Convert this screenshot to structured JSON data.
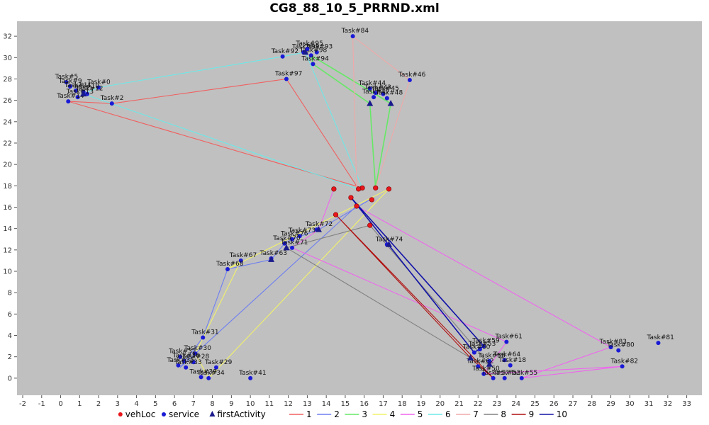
{
  "chart_data": {
    "type": "scatter",
    "title": "CG8_88_10_5_PRRND.xml",
    "xlim": [
      -2.3,
      33.8
    ],
    "ylim": [
      -1.6,
      33.4
    ],
    "xticks": [
      -2,
      -1,
      0,
      1,
      2,
      3,
      4,
      5,
      6,
      7,
      8,
      9,
      10,
      11,
      12,
      13,
      14,
      15,
      16,
      17,
      18,
      19,
      20,
      21,
      22,
      23,
      24,
      25,
      26,
      27,
      28,
      29,
      30,
      31,
      32,
      33
    ],
    "yticks": [
      0,
      2,
      4,
      6,
      8,
      10,
      12,
      14,
      16,
      18,
      20,
      22,
      24,
      26,
      28,
      30,
      32
    ],
    "colors": {
      "plot_bg": "#c0c0c0",
      "vehLoc": "#e8161b",
      "service": "#1a1ad6",
      "firstActivity": "#1a1a8c",
      "route1": "#f06060",
      "route2": "#6e7ef0",
      "route3": "#66e866",
      "route4": "#f2f26a",
      "route5": "#ee66ee",
      "route6": "#6ee8e8",
      "route7": "#f0a8a8",
      "route8": "#808080",
      "route9": "#b01010",
      "route10": "#1212a8"
    },
    "legend": [
      {
        "label": "vehLoc",
        "kind": "circle",
        "color": "#e8161b"
      },
      {
        "label": "service",
        "kind": "circle",
        "color": "#1a1ad6"
      },
      {
        "label": "firstActivity",
        "kind": "triangle",
        "color": "#1a1a8c"
      },
      {
        "label": "1",
        "kind": "line",
        "color": "#f06060"
      },
      {
        "label": "2",
        "kind": "line",
        "color": "#6e7ef0"
      },
      {
        "label": "3",
        "kind": "line",
        "color": "#66e866"
      },
      {
        "label": "4",
        "kind": "line",
        "color": "#f2f26a"
      },
      {
        "label": "5",
        "kind": "line",
        "color": "#ee66ee"
      },
      {
        "label": "6",
        "kind": "line",
        "color": "#6ee8e8"
      },
      {
        "label": "7",
        "kind": "line",
        "color": "#f0a8a8"
      },
      {
        "label": "8",
        "kind": "line",
        "color": "#808080"
      },
      {
        "label": "9",
        "kind": "line",
        "color": "#b01010"
      },
      {
        "label": "10",
        "kind": "line",
        "color": "#1212a8"
      }
    ],
    "vehLoc": [
      [
        14.4,
        17.7
      ],
      [
        15.9,
        17.8
      ],
      [
        15.7,
        17.7
      ],
      [
        16.6,
        17.8
      ],
      [
        17.3,
        17.7
      ],
      [
        15.3,
        16.9
      ],
      [
        16.4,
        16.7
      ],
      [
        15.6,
        16.1
      ],
      [
        14.5,
        15.3
      ],
      [
        16.3,
        14.3
      ]
    ],
    "services": [
      {
        "label": "Task#0",
        "x": 2.0,
        "y": 27.2
      },
      {
        "label": "Task#2",
        "x": 2.7,
        "y": 25.7
      },
      {
        "label": "Task#5",
        "x": 0.3,
        "y": 27.7
      },
      {
        "label": "Task#9",
        "x": 0.5,
        "y": 27.3
      },
      {
        "label": "Task#10",
        "x": 1.2,
        "y": 26.8
      },
      {
        "label": "Task#11",
        "x": 0.8,
        "y": 26.9
      },
      {
        "label": "Task#12",
        "x": 1.4,
        "y": 26.6
      },
      {
        "label": "Task#13",
        "x": 0.9,
        "y": 26.3
      },
      {
        "label": "Task#14",
        "x": 0.4,
        "y": 25.9
      },
      {
        "label": "Task#84",
        "x": 15.4,
        "y": 32.0
      },
      {
        "label": "Task#99",
        "x": 12.8,
        "y": 30.5
      },
      {
        "label": "Task#92",
        "x": 11.7,
        "y": 30.1
      },
      {
        "label": "Task#93",
        "x": 13.5,
        "y": 30.5
      },
      {
        "label": "Task#98",
        "x": 13.2,
        "y": 30.2
      },
      {
        "label": "Task#95",
        "x": 13.0,
        "y": 30.8
      },
      {
        "label": "Task#94",
        "x": 13.3,
        "y": 29.4
      },
      {
        "label": "Task#97",
        "x": 11.9,
        "y": 28.0
      },
      {
        "label": "Task#46",
        "x": 18.4,
        "y": 27.9
      },
      {
        "label": "Task#44",
        "x": 16.3,
        "y": 27.1
      },
      {
        "label": "Task#43",
        "x": 16.6,
        "y": 26.7
      },
      {
        "label": "Task#45",
        "x": 17.0,
        "y": 26.6
      },
      {
        "label": "Task#47",
        "x": 16.5,
        "y": 26.3
      },
      {
        "label": "Task#48",
        "x": 17.2,
        "y": 26.2
      },
      {
        "label": "Task#72",
        "x": 13.5,
        "y": 13.9
      },
      {
        "label": "Task#73",
        "x": 12.6,
        "y": 13.3
      },
      {
        "label": "Task#76",
        "x": 12.2,
        "y": 13.0
      },
      {
        "label": "Task#70",
        "x": 11.8,
        "y": 12.6
      },
      {
        "label": "Task#71",
        "x": 12.2,
        "y": 12.2
      },
      {
        "label": "Task#74",
        "x": 17.2,
        "y": 12.5
      },
      {
        "label": "Task#67",
        "x": 9.5,
        "y": 11.0
      },
      {
        "label": "Task#68",
        "x": 8.8,
        "y": 10.2
      },
      {
        "label": "Task#63",
        "x": 11.1,
        "y": 11.2
      },
      {
        "label": "Task#31",
        "x": 7.5,
        "y": 3.8
      },
      {
        "label": "Task#30",
        "x": 7.1,
        "y": 2.3
      },
      {
        "label": "Task#32",
        "x": 6.3,
        "y": 2.0
      },
      {
        "label": "Task#36",
        "x": 6.5,
        "y": 1.6
      },
      {
        "label": "Task#28",
        "x": 7.0,
        "y": 1.5
      },
      {
        "label": "Task#35",
        "x": 6.2,
        "y": 1.2
      },
      {
        "label": "Task#33",
        "x": 6.6,
        "y": 1.0
      },
      {
        "label": "Task#29",
        "x": 8.2,
        "y": 1.0
      },
      {
        "label": "Task#34",
        "x": 7.8,
        "y": 0.0
      },
      {
        "label": "Task#39",
        "x": 7.4,
        "y": 0.1
      },
      {
        "label": "Task#41",
        "x": 10.0,
        "y": 0.0
      },
      {
        "label": "Task#61",
        "x": 23.5,
        "y": 3.4
      },
      {
        "label": "Task#59",
        "x": 22.3,
        "y": 3.0
      },
      {
        "label": "Task#53",
        "x": 22.1,
        "y": 2.7
      },
      {
        "label": "Task#60",
        "x": 21.8,
        "y": 2.4
      },
      {
        "label": "Task#64",
        "x": 23.4,
        "y": 1.7
      },
      {
        "label": "Task#58",
        "x": 22.6,
        "y": 1.6
      },
      {
        "label": "Task#18",
        "x": 23.7,
        "y": 1.2
      },
      {
        "label": "Task#62",
        "x": 22.0,
        "y": 1.1
      },
      {
        "label": "Task#50",
        "x": 22.3,
        "y": 0.4
      },
      {
        "label": "Task#55",
        "x": 24.3,
        "y": 0.0
      },
      {
        "label": "Task#52",
        "x": 23.4,
        "y": 0.0
      },
      {
        "label": "Task#57",
        "x": 22.8,
        "y": 0.0
      },
      {
        "label": "Task#83",
        "x": 29.0,
        "y": 2.9
      },
      {
        "label": "Task#80",
        "x": 29.4,
        "y": 2.6
      },
      {
        "label": "Task#81",
        "x": 31.5,
        "y": 3.3
      },
      {
        "label": "Task#82",
        "x": 29.6,
        "y": 1.1
      }
    ],
    "firstActivity": [
      [
        1.2,
        26.6
      ],
      [
        12.9,
        30.5
      ],
      [
        16.3,
        25.7
      ],
      [
        17.4,
        25.7
      ],
      [
        13.6,
        13.9
      ],
      [
        11.9,
        12.2
      ],
      [
        11.1,
        11.1
      ],
      [
        17.3,
        12.5
      ],
      [
        21.6,
        1.9
      ],
      [
        22.6,
        1.3
      ]
    ],
    "routes": [
      {
        "name": "1",
        "color": "#f06060",
        "points": [
          [
            15.7,
            17.7
          ],
          [
            11.9,
            28.0
          ],
          [
            2.7,
            25.7
          ],
          [
            0.4,
            25.9
          ],
          [
            15.9,
            17.8
          ]
        ]
      },
      {
        "name": "2",
        "color": "#6e7ef0",
        "points": [
          [
            16.3,
            16.7
          ],
          [
            13.6,
            13.9
          ],
          [
            12.2,
            13.0
          ],
          [
            11.8,
            12.6
          ],
          [
            11.1,
            11.1
          ],
          [
            8.8,
            10.2
          ],
          [
            7.5,
            3.8
          ],
          [
            6.3,
            1.0
          ],
          [
            15.6,
            16.1
          ]
        ]
      },
      {
        "name": "3",
        "color": "#66e866",
        "points": [
          [
            16.6,
            17.8
          ],
          [
            16.3,
            25.7
          ],
          [
            13.3,
            29.4
          ],
          [
            13.2,
            30.2
          ],
          [
            17.4,
            25.7
          ],
          [
            16.6,
            17.8
          ]
        ]
      },
      {
        "name": "4",
        "color": "#f2f26a",
        "points": [
          [
            17.3,
            17.7
          ],
          [
            7.8,
            0.0
          ],
          [
            7.1,
            2.3
          ],
          [
            9.5,
            11.0
          ],
          [
            8.8,
            10.2
          ],
          [
            17.3,
            17.7
          ]
        ]
      },
      {
        "name": "5",
        "color": "#ee66ee",
        "points": [
          [
            14.4,
            17.7
          ],
          [
            13.6,
            13.9
          ],
          [
            12.2,
            12.2
          ],
          [
            23.5,
            3.4
          ],
          [
            22.3,
            0.4
          ],
          [
            29.6,
            1.1
          ],
          [
            24.3,
            0.0
          ],
          [
            29.0,
            2.9
          ],
          [
            15.6,
            16.1
          ]
        ]
      },
      {
        "name": "6",
        "color": "#6ee8e8",
        "points": [
          [
            15.7,
            17.7
          ],
          [
            1.2,
            26.6
          ],
          [
            2.0,
            27.2
          ],
          [
            11.7,
            30.1
          ],
          [
            12.9,
            30.5
          ],
          [
            15.9,
            17.8
          ]
        ]
      },
      {
        "name": "7",
        "color": "#f0a8a8",
        "points": [
          [
            15.6,
            17.7
          ],
          [
            15.4,
            32.0
          ],
          [
            18.4,
            27.9
          ],
          [
            16.6,
            17.8
          ]
        ]
      },
      {
        "name": "8",
        "color": "#808080",
        "points": [
          [
            16.3,
            14.3
          ],
          [
            11.9,
            12.2
          ],
          [
            21.6,
            1.9
          ],
          [
            22.6,
            1.3
          ],
          [
            16.3,
            14.3
          ]
        ]
      },
      {
        "name": "9",
        "color": "#b01010",
        "points": [
          [
            14.5,
            15.3
          ],
          [
            21.6,
            1.9
          ],
          [
            22.8,
            0.0
          ],
          [
            14.5,
            15.3
          ]
        ]
      },
      {
        "name": "10",
        "color": "#1212a8",
        "points": [
          [
            15.3,
            16.9
          ],
          [
            21.8,
            2.4
          ],
          [
            22.3,
            3.0
          ],
          [
            15.3,
            16.9
          ]
        ]
      }
    ]
  }
}
